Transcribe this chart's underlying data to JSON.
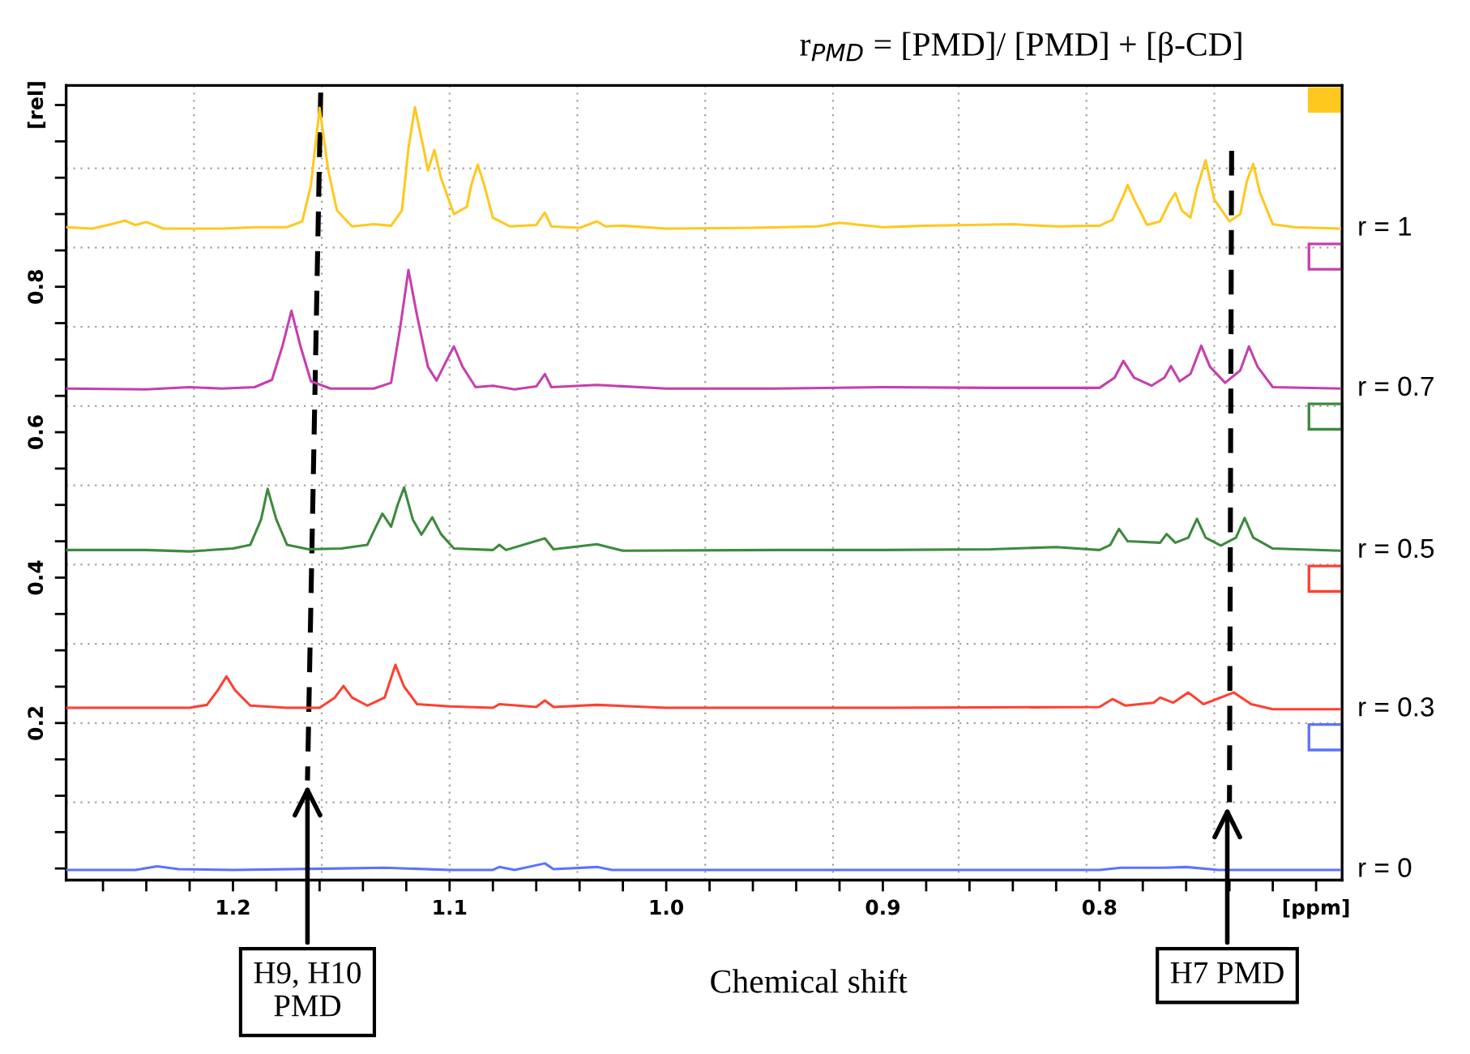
{
  "chart_data": {
    "type": "line",
    "title": "r$_{PMD}$ = [PMD]/ [PMD] + [β-CD]",
    "xlabel": "Chemical shift",
    "xlim": [
      1.277,
      0.688
    ],
    "ylim": [
      -0.016,
      1.077
    ],
    "xticks": [
      {
        "value": 1.26,
        "label": null
      },
      {
        "value": 1.24,
        "label": null
      },
      {
        "value": 1.22,
        "label": null
      },
      1.2,
      {
        "value": 1.18,
        "label": null
      },
      {
        "value": 1.16,
        "label": null
      },
      {
        "value": 1.14,
        "label": null
      },
      {
        "value": 1.12,
        "label": null
      },
      1.1,
      {
        "value": 1.08,
        "label": null
      },
      {
        "value": 1.06,
        "label": null
      },
      {
        "value": 1.04,
        "label": null
      },
      {
        "value": 1.02,
        "label": null
      },
      {
        "value": 1.0,
        "label": "1.0"
      },
      {
        "value": 0.98,
        "label": null
      },
      {
        "value": 0.96,
        "label": null
      },
      {
        "value": 0.94,
        "label": null
      },
      {
        "value": 0.92,
        "label": null
      },
      0.9,
      {
        "value": 0.88,
        "label": null
      },
      {
        "value": 0.86,
        "label": null
      },
      {
        "value": 0.84,
        "label": null
      },
      {
        "value": 0.82,
        "label": null
      },
      0.8,
      {
        "value": 0.78,
        "label": null
      },
      {
        "value": 0.76,
        "label": null
      },
      {
        "value": 0.74,
        "label": null
      },
      {
        "value": 0.72,
        "label": null
      },
      {
        "value": 0.7,
        "label": "[ppm]"
      }
    ],
    "yticks": [
      {
        "value": 0,
        "label": null
      },
      {
        "value": 0.05,
        "label": null
      },
      {
        "value": 0.1,
        "label": null
      },
      {
        "value": 0.15,
        "label": null
      },
      0.2,
      {
        "value": 0.25,
        "label": null
      },
      {
        "value": 0.3,
        "label": null
      },
      {
        "value": 0.35,
        "label": null
      },
      0.4,
      {
        "value": 0.45,
        "label": null
      },
      {
        "value": 0.5,
        "label": null
      },
      {
        "value": 0.55,
        "label": null
      },
      0.6,
      {
        "value": 0.65,
        "label": null
      },
      {
        "value": 0.7,
        "label": null
      },
      {
        "value": 0.75,
        "label": null
      },
      0.8,
      {
        "value": 0.85,
        "label": null
      },
      {
        "value": 0.9,
        "label": null
      },
      {
        "value": 0.95,
        "label": null
      },
      {
        "value": 1.0,
        "label": null
      },
      {
        "value": 1.05,
        "label": "[rel]"
      }
    ],
    "grid": false,
    "legend": "right",
    "marker": "none",
    "line_style": "solid",
    "ref_lines": [
      {
        "axis": "x",
        "value": 1.218,
        "color": "#a0a0a0",
        "line_style": "dotted"
      },
      {
        "axis": "x",
        "value": 1.159,
        "color": "#a0a0a0",
        "line_style": "dotted"
      },
      {
        "axis": "x",
        "value": 1.1,
        "color": "#a0a0a0",
        "line_style": "dotted"
      },
      {
        "axis": "x",
        "value": 1.041,
        "color": "#a0a0a0",
        "line_style": "dotted"
      },
      {
        "axis": "x",
        "value": 0.982,
        "color": "#a0a0a0",
        "line_style": "dotted"
      },
      {
        "axis": "x",
        "value": 0.923,
        "color": "#a0a0a0",
        "line_style": "dotted"
      },
      {
        "axis": "x",
        "value": 0.865,
        "color": "#a0a0a0",
        "line_style": "dotted"
      },
      {
        "axis": "x",
        "value": 0.806,
        "color": "#a0a0a0",
        "line_style": "dotted"
      },
      {
        "axis": "x",
        "value": 0.747,
        "color": "#a0a0a0",
        "line_style": "dotted"
      },
      {
        "axis": "y",
        "value": 0.091,
        "color": "#a0a0a0",
        "line_style": "dotted"
      },
      {
        "axis": "y",
        "value": 0.2,
        "color": "#a0a0a0",
        "line_style": "dotted"
      },
      {
        "axis": "y",
        "value": 0.309,
        "color": "#a0a0a0",
        "line_style": "dotted"
      },
      {
        "axis": "y",
        "value": 0.418,
        "color": "#a0a0a0",
        "line_style": "dotted"
      },
      {
        "axis": "y",
        "value": 0.527,
        "color": "#a0a0a0",
        "line_style": "dotted"
      },
      {
        "axis": "y",
        "value": 0.636,
        "color": "#a0a0a0",
        "line_style": "dotted"
      },
      {
        "axis": "y",
        "value": 0.745,
        "color": "#a0a0a0",
        "line_style": "dotted"
      },
      {
        "axis": "y",
        "value": 0.854,
        "color": "#a0a0a0",
        "line_style": "dotted"
      },
      {
        "axis": "y",
        "value": 0.963,
        "color": "#a0a0a0",
        "line_style": "dotted"
      }
    ],
    "annotations": [
      {
        "text": "H9, H10\nPMD",
        "x": 1.1656,
        "y": 0.121
      },
      {
        "text": "H7 PMD",
        "x": 0.741,
        "y": 0.091
      }
    ],
    "series": [
      {
        "name": "r = 1",
        "color": "#ffc820",
        "x": [
          1.277,
          1.265,
          1.255,
          1.25,
          1.245,
          1.24,
          1.232,
          1.205,
          1.19,
          1.175,
          1.168,
          1.164,
          1.16,
          1.156,
          1.152,
          1.145,
          1.135,
          1.127,
          1.122,
          1.119,
          1.116,
          1.112,
          1.11,
          1.107,
          1.104,
          1.098,
          1.092,
          1.09,
          1.087,
          1.084,
          1.08,
          1.072,
          1.06,
          1.056,
          1.053,
          1.04,
          1.032,
          1.028,
          1.02,
          1.0,
          0.96,
          0.93,
          0.92,
          0.9,
          0.88,
          0.86,
          0.84,
          0.82,
          0.8,
          0.794,
          0.789,
          0.787,
          0.784,
          0.778,
          0.772,
          0.768,
          0.765,
          0.762,
          0.758,
          0.755,
          0.751,
          0.747,
          0.74,
          0.735,
          0.732,
          0.729,
          0.726,
          0.72,
          0.71,
          0.689
        ],
        "values": [
          0.882,
          0.88,
          0.887,
          0.891,
          0.885,
          0.889,
          0.88,
          0.88,
          0.882,
          0.882,
          0.89,
          0.94,
          1.046,
          0.96,
          0.905,
          0.883,
          0.886,
          0.884,
          0.905,
          0.99,
          1.047,
          0.99,
          0.96,
          0.988,
          0.95,
          0.9,
          0.91,
          0.94,
          0.968,
          0.94,
          0.895,
          0.883,
          0.885,
          0.902,
          0.883,
          0.881,
          0.89,
          0.883,
          0.884,
          0.88,
          0.881,
          0.883,
          0.888,
          0.882,
          0.884,
          0.885,
          0.886,
          0.883,
          0.884,
          0.892,
          0.925,
          0.94,
          0.92,
          0.885,
          0.89,
          0.915,
          0.929,
          0.905,
          0.895,
          0.935,
          0.974,
          0.92,
          0.89,
          0.9,
          0.945,
          0.969,
          0.93,
          0.886,
          0.882,
          0.88
        ]
      },
      {
        "name": "r = 0.7",
        "color": "#c63fae",
        "x": [
          1.277,
          1.24,
          1.22,
          1.205,
          1.19,
          1.182,
          1.177,
          1.173,
          1.169,
          1.164,
          1.155,
          1.135,
          1.127,
          1.123,
          1.119,
          1.115,
          1.11,
          1.106,
          1.102,
          1.098,
          1.094,
          1.088,
          1.08,
          1.07,
          1.06,
          1.056,
          1.053,
          1.032,
          1.0,
          0.95,
          0.9,
          0.85,
          0.8,
          0.793,
          0.789,
          0.784,
          0.776,
          0.77,
          0.767,
          0.763,
          0.758,
          0.753,
          0.749,
          0.742,
          0.735,
          0.731,
          0.727,
          0.72,
          0.689
        ],
        "values": [
          0.66,
          0.659,
          0.662,
          0.66,
          0.662,
          0.672,
          0.72,
          0.767,
          0.72,
          0.67,
          0.66,
          0.66,
          0.668,
          0.74,
          0.823,
          0.76,
          0.69,
          0.671,
          0.695,
          0.718,
          0.69,
          0.662,
          0.664,
          0.659,
          0.663,
          0.68,
          0.662,
          0.665,
          0.66,
          0.66,
          0.662,
          0.661,
          0.661,
          0.675,
          0.698,
          0.675,
          0.664,
          0.675,
          0.691,
          0.67,
          0.68,
          0.719,
          0.69,
          0.668,
          0.685,
          0.718,
          0.69,
          0.662,
          0.66
        ]
      },
      {
        "name": "r = 0.5",
        "color": "#3d8a3d",
        "x": [
          1.277,
          1.24,
          1.22,
          1.2,
          1.192,
          1.187,
          1.184,
          1.18,
          1.175,
          1.165,
          1.15,
          1.138,
          1.134,
          1.131,
          1.127,
          1.124,
          1.121,
          1.117,
          1.113,
          1.108,
          1.104,
          1.098,
          1.08,
          1.077,
          1.074,
          1.056,
          1.052,
          1.032,
          1.02,
          0.95,
          0.9,
          0.85,
          0.82,
          0.8,
          0.795,
          0.791,
          0.787,
          0.772,
          0.769,
          0.765,
          0.759,
          0.755,
          0.751,
          0.744,
          0.737,
          0.733,
          0.729,
          0.72,
          0.689
        ],
        "values": [
          0.438,
          0.438,
          0.436,
          0.44,
          0.445,
          0.48,
          0.522,
          0.48,
          0.445,
          0.439,
          0.44,
          0.445,
          0.47,
          0.488,
          0.47,
          0.5,
          0.524,
          0.48,
          0.459,
          0.483,
          0.46,
          0.44,
          0.438,
          0.445,
          0.438,
          0.454,
          0.439,
          0.446,
          0.437,
          0.438,
          0.438,
          0.439,
          0.442,
          0.438,
          0.445,
          0.467,
          0.45,
          0.448,
          0.46,
          0.448,
          0.455,
          0.481,
          0.455,
          0.444,
          0.455,
          0.482,
          0.455,
          0.44,
          0.437
        ]
      },
      {
        "name": "r = 0.3",
        "color": "#ff4030",
        "x": [
          1.277,
          1.22,
          1.212,
          1.207,
          1.203,
          1.199,
          1.192,
          1.175,
          1.16,
          1.153,
          1.149,
          1.145,
          1.138,
          1.13,
          1.125,
          1.121,
          1.115,
          1.1,
          1.08,
          1.077,
          1.06,
          1.056,
          1.052,
          1.032,
          1.0,
          0.9,
          0.8,
          0.794,
          0.788,
          0.775,
          0.772,
          0.766,
          0.759,
          0.752,
          0.738,
          0.73,
          0.72,
          0.689
        ],
        "values": [
          0.221,
          0.221,
          0.225,
          0.245,
          0.264,
          0.245,
          0.224,
          0.221,
          0.221,
          0.235,
          0.251,
          0.235,
          0.224,
          0.235,
          0.28,
          0.25,
          0.226,
          0.223,
          0.221,
          0.226,
          0.222,
          0.231,
          0.222,
          0.225,
          0.221,
          0.221,
          0.222,
          0.233,
          0.224,
          0.228,
          0.235,
          0.228,
          0.242,
          0.226,
          0.242,
          0.226,
          0.219,
          0.219
        ]
      },
      {
        "name": "r = 0",
        "color": "#5a74ff",
        "x": [
          1.277,
          1.245,
          1.235,
          1.225,
          1.2,
          1.15,
          1.13,
          1.1,
          1.08,
          1.077,
          1.07,
          1.056,
          1.052,
          1.032,
          1.025,
          0.9,
          0.8,
          0.79,
          0.77,
          0.76,
          0.745,
          0.689
        ],
        "values": [
          -0.002,
          -0.002,
          0.003,
          -0.001,
          -0.002,
          0.0,
          0.001,
          -0.002,
          -0.002,
          0.002,
          -0.002,
          0.007,
          -0.001,
          0.002,
          -0.002,
          -0.002,
          -0.002,
          0.001,
          0.001,
          0.002,
          -0.002,
          -0.002
        ]
      },
      {
        "color": "#000000",
        "line_style": "dashed",
        "x": [
          1.1595,
          1.1656
        ],
        "values": [
          1.067,
          0.121
        ]
      },
      {
        "color": "#000000",
        "line_style": "dashed",
        "x": [
          0.739,
          0.74
        ],
        "values": [
          0.987,
          0.091
        ]
      }
    ]
  }
}
